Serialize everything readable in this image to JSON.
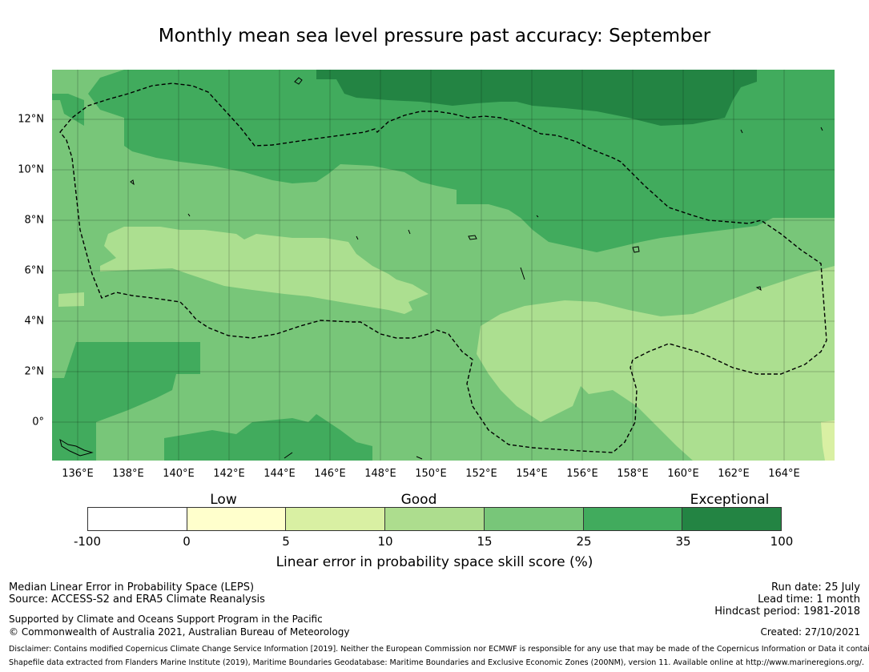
{
  "title": "Monthly mean sea level pressure past accuracy: September",
  "map": {
    "lon_ticks": [
      "136°E",
      "138°E",
      "140°E",
      "142°E",
      "144°E",
      "146°E",
      "148°E",
      "150°E",
      "152°E",
      "154°E",
      "156°E",
      "158°E",
      "160°E",
      "162°E",
      "164°E"
    ],
    "lat_ticks": [
      "12°N",
      "10°N",
      "8°N",
      "6°N",
      "4°N",
      "2°N",
      "0°"
    ],
    "colors": {
      "c10_15": "#acdf90",
      "c15_25": "#78c679",
      "c25_35": "#41ab5d",
      "c35_100": "#238443",
      "c5_10": "#d9f0a3",
      "boundary": "#000000"
    }
  },
  "legend": {
    "categories": [
      "Low",
      "Good",
      "Exceptional"
    ],
    "colors": [
      "#ffffff",
      "#ffffcc",
      "#d9f0a3",
      "#addd8e",
      "#78c679",
      "#41ab5d",
      "#238443"
    ],
    "ticks": [
      "-100",
      "0",
      "5",
      "10",
      "15",
      "25",
      "35",
      "100"
    ],
    "label": "Linear error in probability space skill score (%)"
  },
  "footer": {
    "left1": "Median Linear Error in Probability Space (LEPS)",
    "left2": "Source: ACCESS-S2 and ERA5 Climate Reanalysis",
    "left3": "Supported by Climate and Oceans Support Program in the Pacific",
    "left4": "© Commonwealth of Australia 2021, Australian Bureau of Meteorology",
    "run_date": "Run date: 25 July",
    "lead_time": "Lead time: 1 month",
    "hindcast": "Hindcast period: 1981-2018",
    "created": "Created: 27/10/2021",
    "disclaimer": "Disclaimer: Contains modified Copernicus Climate Change Service Information [2019]. Neither the European Commission nor ECMWF is responsible for any use that may be made of the Copernicus Information or Data it contains.",
    "shapefile": "Shapefile data extracted from Flanders Marine Institute (2019), Maritime Boundaries Geodatabase: Maritime Boundaries and Exclusive Economic Zones (200NM), version 11. Available online at http://www.marineregions.org/."
  }
}
